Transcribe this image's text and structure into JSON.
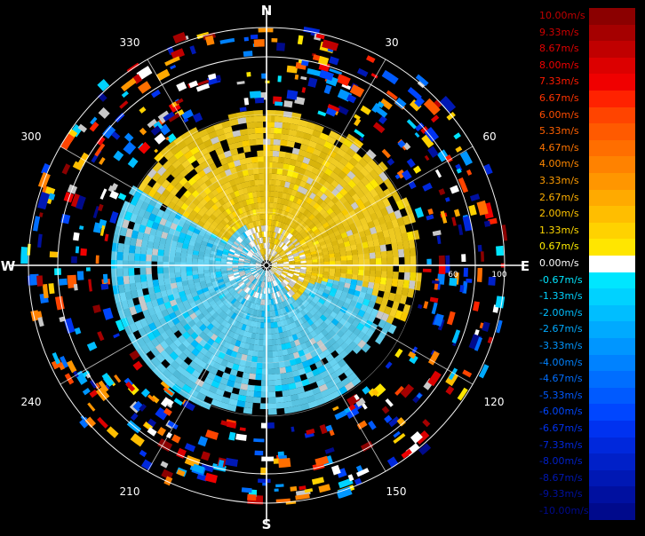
{
  "compass": {
    "north": "N",
    "south": "S",
    "east": "E",
    "west": "W"
  },
  "azimuth_labels": [
    "30",
    "60",
    "120",
    "150",
    "210",
    "240",
    "300",
    "330"
  ],
  "range_labels": [
    "60",
    "100"
  ],
  "legend": {
    "entries": [
      {
        "label": "10.00m/s",
        "color": "#8b0000",
        "text_color": "#c00000"
      },
      {
        "label": "9.33m/s",
        "color": "#a50000",
        "text_color": "#d00000"
      },
      {
        "label": "8.67m/s",
        "color": "#c00000",
        "text_color": "#e00000"
      },
      {
        "label": "8.00m/s",
        "color": "#dc0000",
        "text_color": "#f00000"
      },
      {
        "label": "7.33m/s",
        "color": "#f00000",
        "text_color": "#ff1a00"
      },
      {
        "label": "6.67m/s",
        "color": "#ff2200",
        "text_color": "#ff3300"
      },
      {
        "label": "6.00m/s",
        "color": "#ff4400",
        "text_color": "#ff4c00"
      },
      {
        "label": "5.33m/s",
        "color": "#ff5a00",
        "text_color": "#ff6000"
      },
      {
        "label": "4.67m/s",
        "color": "#ff6e00",
        "text_color": "#ff7400"
      },
      {
        "label": "4.00m/s",
        "color": "#ff8200",
        "text_color": "#ff8800"
      },
      {
        "label": "3.33m/s",
        "color": "#ff9600",
        "text_color": "#ff9c00"
      },
      {
        "label": "2.67m/s",
        "color": "#ffaa00",
        "text_color": "#ffb000"
      },
      {
        "label": "2.00m/s",
        "color": "#ffbe00",
        "text_color": "#ffc400"
      },
      {
        "label": "1.33m/s",
        "color": "#ffd200",
        "text_color": "#ffd800"
      },
      {
        "label": "0.67m/s",
        "color": "#ffe600",
        "text_color": "#ffee00"
      },
      {
        "label": "0.00m/s",
        "color": "#ffffff",
        "text_color": "#ffffff"
      },
      {
        "label": "-0.67m/s",
        "color": "#00e6ff",
        "text_color": "#00e6ff"
      },
      {
        "label": "-1.33m/s",
        "color": "#00d2ff",
        "text_color": "#00d2ff"
      },
      {
        "label": "-2.00m/s",
        "color": "#00beff",
        "text_color": "#00beff"
      },
      {
        "label": "-2.67m/s",
        "color": "#00aaff",
        "text_color": "#00aaff"
      },
      {
        "label": "-3.33m/s",
        "color": "#0096ff",
        "text_color": "#0096ff"
      },
      {
        "label": "-4.00m/s",
        "color": "#0082ff",
        "text_color": "#0082ff"
      },
      {
        "label": "-4.67m/s",
        "color": "#006eff",
        "text_color": "#006eff"
      },
      {
        "label": "-5.33m/s",
        "color": "#005aff",
        "text_color": "#005aff"
      },
      {
        "label": "-6.00m/s",
        "color": "#0046ff",
        "text_color": "#0046ff"
      },
      {
        "label": "-6.67m/s",
        "color": "#0032f0",
        "text_color": "#0032f0"
      },
      {
        "label": "-7.33m/s",
        "color": "#0028dc",
        "text_color": "#0028dc"
      },
      {
        "label": "-8.00m/s",
        "color": "#0020c8",
        "text_color": "#0020c8"
      },
      {
        "label": "-8.67m/s",
        "color": "#0018b4",
        "text_color": "#0018b4"
      },
      {
        "label": "-9.33m/s",
        "color": "#0010a0",
        "text_color": "#0010a0"
      },
      {
        "label": "-10.00m/s",
        "color": "#000a8c",
        "text_color": "#000a8c"
      }
    ]
  },
  "colors": {
    "background": "#000000",
    "grid": "#ffffff",
    "approaching_core": "#5ec8e6",
    "receding_core": "#e6c21a",
    "clutter": "#c8c8c8"
  }
}
